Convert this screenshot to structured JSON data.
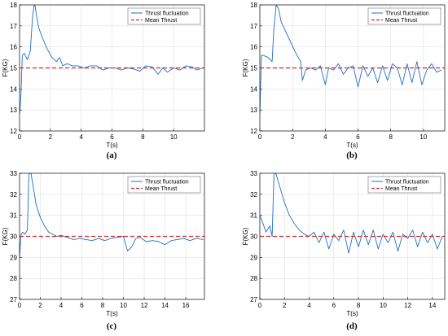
{
  "colors": {
    "fluct": "#1f6fc2",
    "mean": "#d62728",
    "grid": "#e0e0e0",
    "axis": "#000000"
  },
  "chart_data": [
    {
      "type": "line",
      "caption": "(a)",
      "xlabel": "T(s)",
      "ylabel": "F(KG)",
      "xlim": [
        0,
        12
      ],
      "ylim": [
        12,
        18
      ],
      "xticks": [
        "0",
        "2",
        "4",
        "6",
        "8",
        "10"
      ],
      "yticks": [
        "12",
        "13",
        "14",
        "15",
        "16",
        "17",
        "18"
      ],
      "grid": true,
      "legend_position": "top-right",
      "series": [
        {
          "name": "Thrust fluctuation",
          "x": [
            0,
            0.08,
            0.18,
            0.3,
            0.5,
            0.7,
            0.85,
            0.95,
            1.0,
            1.1,
            1.25,
            1.5,
            1.8,
            2.1,
            2.4,
            2.6,
            2.8,
            3.1,
            3.4,
            3.8,
            4.2,
            4.6,
            5.0,
            5.4,
            5.8,
            6.2,
            6.6,
            7.0,
            7.4,
            7.8,
            8.2,
            8.6,
            9.0,
            9.3,
            9.6,
            10.0,
            10.4,
            10.8,
            11.2,
            11.5,
            11.9
          ],
          "y": [
            12.8,
            13.5,
            15.6,
            15.7,
            15.4,
            15.8,
            17.5,
            18.0,
            18.0,
            17.5,
            16.9,
            16.4,
            15.9,
            15.5,
            15.3,
            15.5,
            15.1,
            15.2,
            15.1,
            15.1,
            15.0,
            15.1,
            15.1,
            14.9,
            15.0,
            15.0,
            14.9,
            15.0,
            14.95,
            14.85,
            15.1,
            15.05,
            14.7,
            15.0,
            14.8,
            15.0,
            14.9,
            15.1,
            15.05,
            14.9,
            15.0
          ]
        },
        {
          "name": "Mean Thrust",
          "x": [
            0,
            12
          ],
          "y": [
            15,
            15
          ]
        }
      ]
    },
    {
      "type": "line",
      "caption": "(b)",
      "xlabel": "T(s)",
      "ylabel": "F(KG)",
      "xlim": [
        0,
        11.3
      ],
      "ylim": [
        12,
        18
      ],
      "xticks": [
        "0",
        "2",
        "4",
        "6",
        "8",
        "10"
      ],
      "yticks": [
        "12",
        "13",
        "14",
        "15",
        "16",
        "17",
        "18"
      ],
      "grid": true,
      "legend_position": "top-right",
      "series": [
        {
          "name": "Thrust fluctuation",
          "x": [
            0,
            0.1,
            0.2,
            0.5,
            0.75,
            0.85,
            1.0,
            1.15,
            1.3,
            1.6,
            1.9,
            2.2,
            2.5,
            2.6,
            2.8,
            3.1,
            3.4,
            3.7,
            4.0,
            4.2,
            4.5,
            4.8,
            5.1,
            5.4,
            5.7,
            6.0,
            6.3,
            6.6,
            6.9,
            7.2,
            7.5,
            7.8,
            8.1,
            8.4,
            8.7,
            9.0,
            9.3,
            9.6,
            9.9,
            10.2,
            10.5,
            10.8,
            11.1
          ],
          "y": [
            12.8,
            15.6,
            15.6,
            15.5,
            15.3,
            16.8,
            18.0,
            17.8,
            17.2,
            16.7,
            16.2,
            15.7,
            15.3,
            14.4,
            14.9,
            15.0,
            14.9,
            15.1,
            14.2,
            15.0,
            14.9,
            15.2,
            14.7,
            15.0,
            15.1,
            14.1,
            15.1,
            14.6,
            15.0,
            14.3,
            15.1,
            14.4,
            15.2,
            15.0,
            14.2,
            15.2,
            14.3,
            15.3,
            14.2,
            14.9,
            15.2,
            14.8,
            14.9
          ]
        },
        {
          "name": "Mean Thrust",
          "x": [
            0,
            11.3
          ],
          "y": [
            15,
            15
          ]
        }
      ]
    },
    {
      "type": "line",
      "caption": "(c)",
      "xlabel": "T(s)",
      "ylabel": "F(KG)",
      "xlim": [
        0,
        17.8
      ],
      "ylim": [
        27,
        33
      ],
      "xticks": [
        "0",
        "2",
        "4",
        "6",
        "8",
        "10",
        "12",
        "14",
        "16"
      ],
      "yticks": [
        "27",
        "28",
        "29",
        "30",
        "31",
        "32",
        "33"
      ],
      "grid": true,
      "legend_position": "top-right",
      "series": [
        {
          "name": "Thrust fluctuation",
          "x": [
            0,
            0.15,
            0.3,
            0.5,
            0.75,
            0.9,
            1.1,
            1.3,
            1.6,
            2.0,
            2.4,
            2.8,
            3.2,
            3.6,
            4.0,
            4.6,
            5.2,
            5.8,
            6.4,
            7.0,
            7.6,
            8.2,
            8.8,
            9.4,
            10.0,
            10.4,
            10.8,
            11.2,
            11.6,
            12.2,
            12.8,
            13.4,
            14.0,
            14.6,
            15.2,
            15.8,
            16.4,
            17.0,
            17.7
          ],
          "y": [
            29.0,
            30.1,
            30.2,
            30.1,
            30.3,
            33.0,
            33.0,
            32.4,
            31.5,
            30.9,
            30.5,
            30.2,
            30.1,
            30.0,
            30.05,
            29.95,
            29.85,
            29.9,
            29.85,
            29.8,
            29.9,
            29.8,
            29.9,
            29.95,
            30.0,
            29.3,
            29.5,
            29.9,
            29.95,
            29.75,
            29.8,
            29.75,
            29.6,
            29.8,
            29.85,
            29.9,
            29.8,
            29.9,
            29.85
          ]
        },
        {
          "name": "Mean Thrust",
          "x": [
            0,
            17.8
          ],
          "y": [
            30,
            30
          ]
        }
      ]
    },
    {
      "type": "line",
      "caption": "(d)",
      "xlabel": "T(s)",
      "ylabel": "F(KG)",
      "xlim": [
        0,
        15
      ],
      "ylim": [
        27,
        33
      ],
      "xticks": [
        "0",
        "2",
        "4",
        "6",
        "8",
        "10",
        "12",
        "14"
      ],
      "yticks": [
        "27",
        "28",
        "29",
        "30",
        "31",
        "32",
        "33"
      ],
      "grid": true,
      "legend_position": "top-right",
      "series": [
        {
          "name": "Thrust fluctuation",
          "x": [
            0,
            0.2,
            0.5,
            0.8,
            1.0,
            1.15,
            1.3,
            1.6,
            2.0,
            2.4,
            2.8,
            3.2,
            3.6,
            4.0,
            4.4,
            4.8,
            5.2,
            5.6,
            6.0,
            6.4,
            6.8,
            7.2,
            7.6,
            8.0,
            8.4,
            8.8,
            9.2,
            9.6,
            10.0,
            10.4,
            10.8,
            11.2,
            11.6,
            12.0,
            12.4,
            12.8,
            13.2,
            13.6,
            14.0,
            14.4,
            14.8
          ],
          "y": [
            31.0,
            30.7,
            30.2,
            30.5,
            30.0,
            33.0,
            33.0,
            32.4,
            31.6,
            31.0,
            30.6,
            30.3,
            30.1,
            30.0,
            30.2,
            29.7,
            30.2,
            29.4,
            30.1,
            29.8,
            30.3,
            29.2,
            30.2,
            29.5,
            30.3,
            29.6,
            30.3,
            29.4,
            30.1,
            29.7,
            30.2,
            29.3,
            30.1,
            29.9,
            30.3,
            29.5,
            30.2,
            29.7,
            30.1,
            29.4,
            30.0
          ]
        },
        {
          "name": "Mean Thrust",
          "x": [
            0,
            15
          ],
          "y": [
            30,
            30
          ]
        }
      ]
    }
  ]
}
